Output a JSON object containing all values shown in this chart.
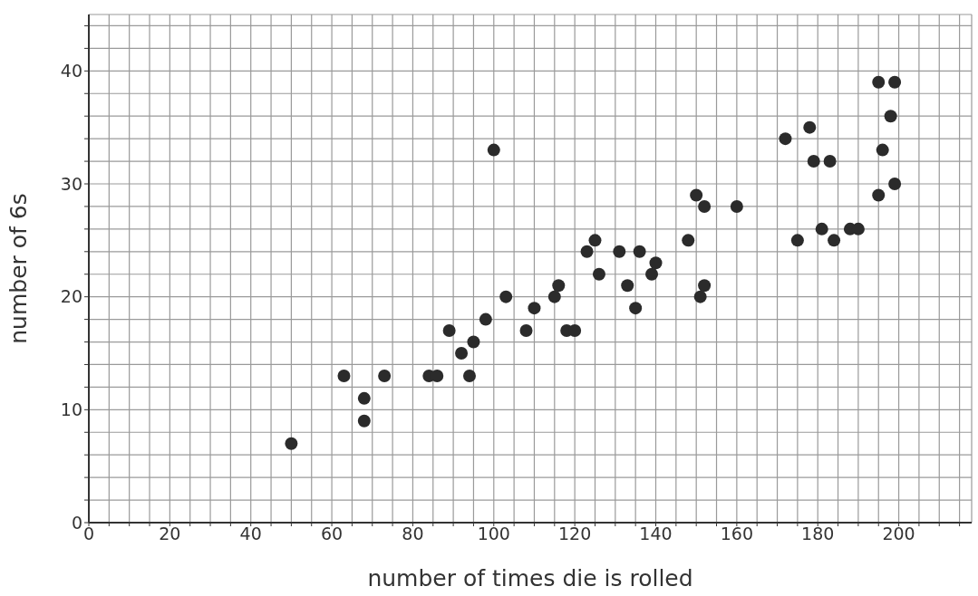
{
  "chart_data": {
    "type": "scatter",
    "xlabel": "number of times die is rolled",
    "ylabel": "number of 6s",
    "x": [
      50,
      63,
      68,
      68,
      73,
      84,
      86,
      89,
      92,
      94,
      95,
      98,
      100,
      103,
      108,
      110,
      115,
      116,
      118,
      120,
      123,
      125,
      126,
      131,
      133,
      135,
      136,
      139,
      140,
      148,
      150,
      151,
      152,
      152,
      160,
      172,
      175,
      178,
      179,
      181,
      183,
      184,
      188,
      190,
      195,
      195,
      196,
      198,
      199,
      199
    ],
    "values": [
      7,
      13,
      11,
      9,
      13,
      13,
      13,
      17,
      15,
      13,
      16,
      18,
      33,
      20,
      17,
      19,
      20,
      21,
      17,
      17,
      24,
      25,
      22,
      24,
      21,
      19,
      24,
      22,
      23,
      25,
      29,
      20,
      28,
      21,
      28,
      34,
      25,
      35,
      32,
      26,
      32,
      25,
      26,
      26,
      29,
      39,
      33,
      36,
      39,
      30
    ],
    "color": "#2b2b2b",
    "marker": "circle",
    "grid": true,
    "xlim": [
      0,
      218
    ],
    "ylim": [
      0,
      45
    ],
    "xticks": [
      0,
      {
        "value": 5,
        "label": null
      },
      {
        "value": 10,
        "label": null
      },
      {
        "value": 15,
        "label": null
      },
      20,
      {
        "value": 25,
        "label": null
      },
      {
        "value": 30,
        "label": null
      },
      {
        "value": 35,
        "label": null
      },
      40,
      {
        "value": 45,
        "label": null
      },
      {
        "value": 50,
        "label": null
      },
      {
        "value": 55,
        "label": null
      },
      60,
      {
        "value": 65,
        "label": null
      },
      {
        "value": 70,
        "label": null
      },
      {
        "value": 75,
        "label": null
      },
      80,
      {
        "value": 85,
        "label": null
      },
      {
        "value": 90,
        "label": null
      },
      {
        "value": 95,
        "label": null
      },
      100,
      {
        "value": 105,
        "label": null
      },
      {
        "value": 110,
        "label": null
      },
      {
        "value": 115,
        "label": null
      },
      120,
      {
        "value": 125,
        "label": null
      },
      {
        "value": 130,
        "label": null
      },
      {
        "value": 135,
        "label": null
      },
      140,
      {
        "value": 145,
        "label": null
      },
      {
        "value": 150,
        "label": null
      },
      {
        "value": 155,
        "label": null
      },
      160,
      {
        "value": 165,
        "label": null
      },
      {
        "value": 170,
        "label": null
      },
      {
        "value": 175,
        "label": null
      },
      180,
      {
        "value": 185,
        "label": null
      },
      {
        "value": 190,
        "label": null
      },
      {
        "value": 195,
        "label": null
      },
      200,
      {
        "value": 205,
        "label": null
      },
      {
        "value": 210,
        "label": null
      },
      {
        "value": 215,
        "label": null
      }
    ],
    "yticks": [
      0,
      {
        "value": 2,
        "label": null
      },
      {
        "value": 4,
        "label": null
      },
      {
        "value": 6,
        "label": null
      },
      {
        "value": 8,
        "label": null
      },
      10,
      {
        "value": 12,
        "label": null
      },
      {
        "value": 14,
        "label": null
      },
      {
        "value": 16,
        "label": null
      },
      {
        "value": 18,
        "label": null
      },
      20,
      {
        "value": 22,
        "label": null
      },
      {
        "value": 24,
        "label": null
      },
      {
        "value": 26,
        "label": null
      },
      {
        "value": 28,
        "label": null
      },
      30,
      {
        "value": 32,
        "label": null
      },
      {
        "value": 34,
        "label": null
      },
      {
        "value": 36,
        "label": null
      },
      {
        "value": 38,
        "label": null
      },
      40,
      {
        "value": 42,
        "label": null
      },
      {
        "value": 44,
        "label": null
      }
    ]
  }
}
